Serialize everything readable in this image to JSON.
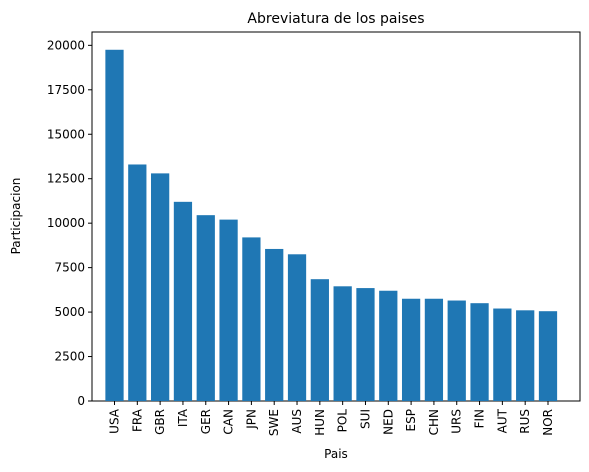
{
  "chart_data": {
    "type": "bar",
    "title": "Abreviatura de los paises",
    "xlabel": "Pais",
    "ylabel": "Participacion",
    "categories": [
      "USA",
      "FRA",
      "GBR",
      "ITA",
      "GER",
      "CAN",
      "JPN",
      "SWE",
      "AUS",
      "HUN",
      "POL",
      "SUI",
      "NED",
      "ESP",
      "CHN",
      "URS",
      "FIN",
      "AUT",
      "RUS",
      "NOR"
    ],
    "values": [
      19750,
      13300,
      12800,
      11200,
      10450,
      10200,
      9200,
      8550,
      8250,
      6850,
      6450,
      6350,
      6200,
      5750,
      5750,
      5650,
      5500,
      5200,
      5100,
      5050
    ],
    "ylim": [
      0,
      20750
    ],
    "yticks": [
      0,
      2500,
      5000,
      7500,
      10000,
      12500,
      15000,
      17500,
      20000
    ],
    "bar_color": "#1f77b4",
    "grid": false,
    "legend": "none"
  }
}
